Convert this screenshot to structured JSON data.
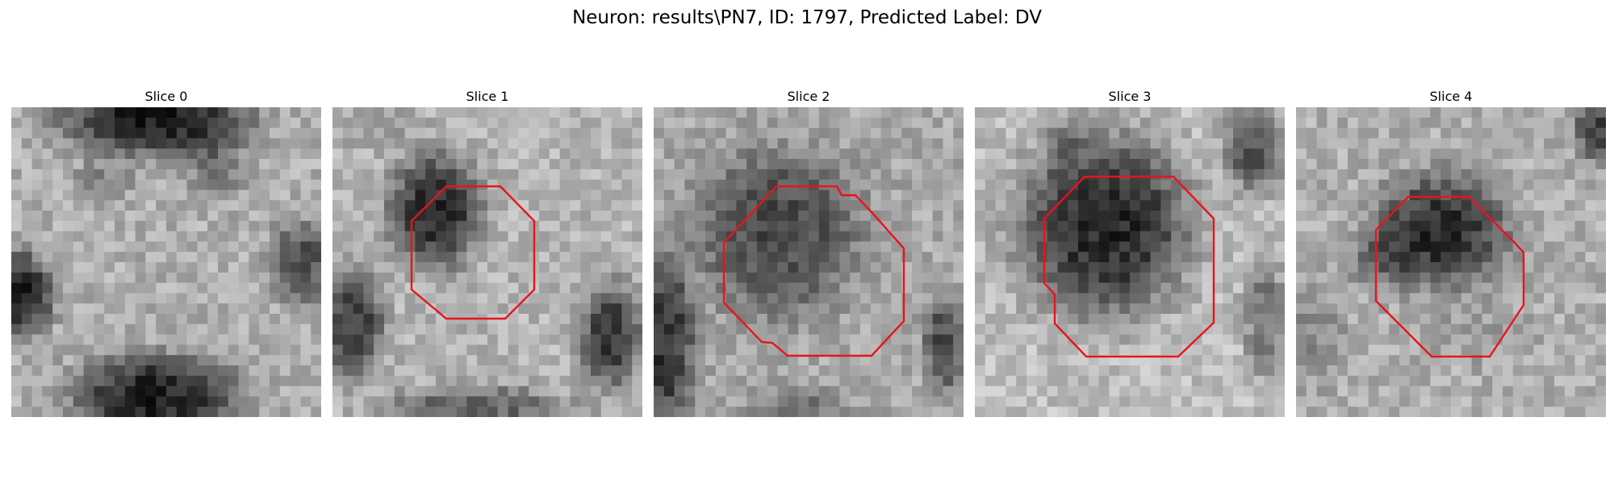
{
  "figure": {
    "title": "Neuron: results\\PN7, ID: 1797, Predicted Label: DV"
  },
  "panels": [
    {
      "title": "Slice 0",
      "has_contour": false
    },
    {
      "title": "Slice 1",
      "has_contour": true
    },
    {
      "title": "Slice 2",
      "has_contour": true
    },
    {
      "title": "Slice 3",
      "has_contour": true
    },
    {
      "title": "Slice 4",
      "has_contour": true
    }
  ],
  "colors": {
    "contour": "#e8141c",
    "background": "#ffffff",
    "text": "#000000"
  },
  "image": {
    "colormap": "grayscale",
    "grid": "30x30"
  }
}
